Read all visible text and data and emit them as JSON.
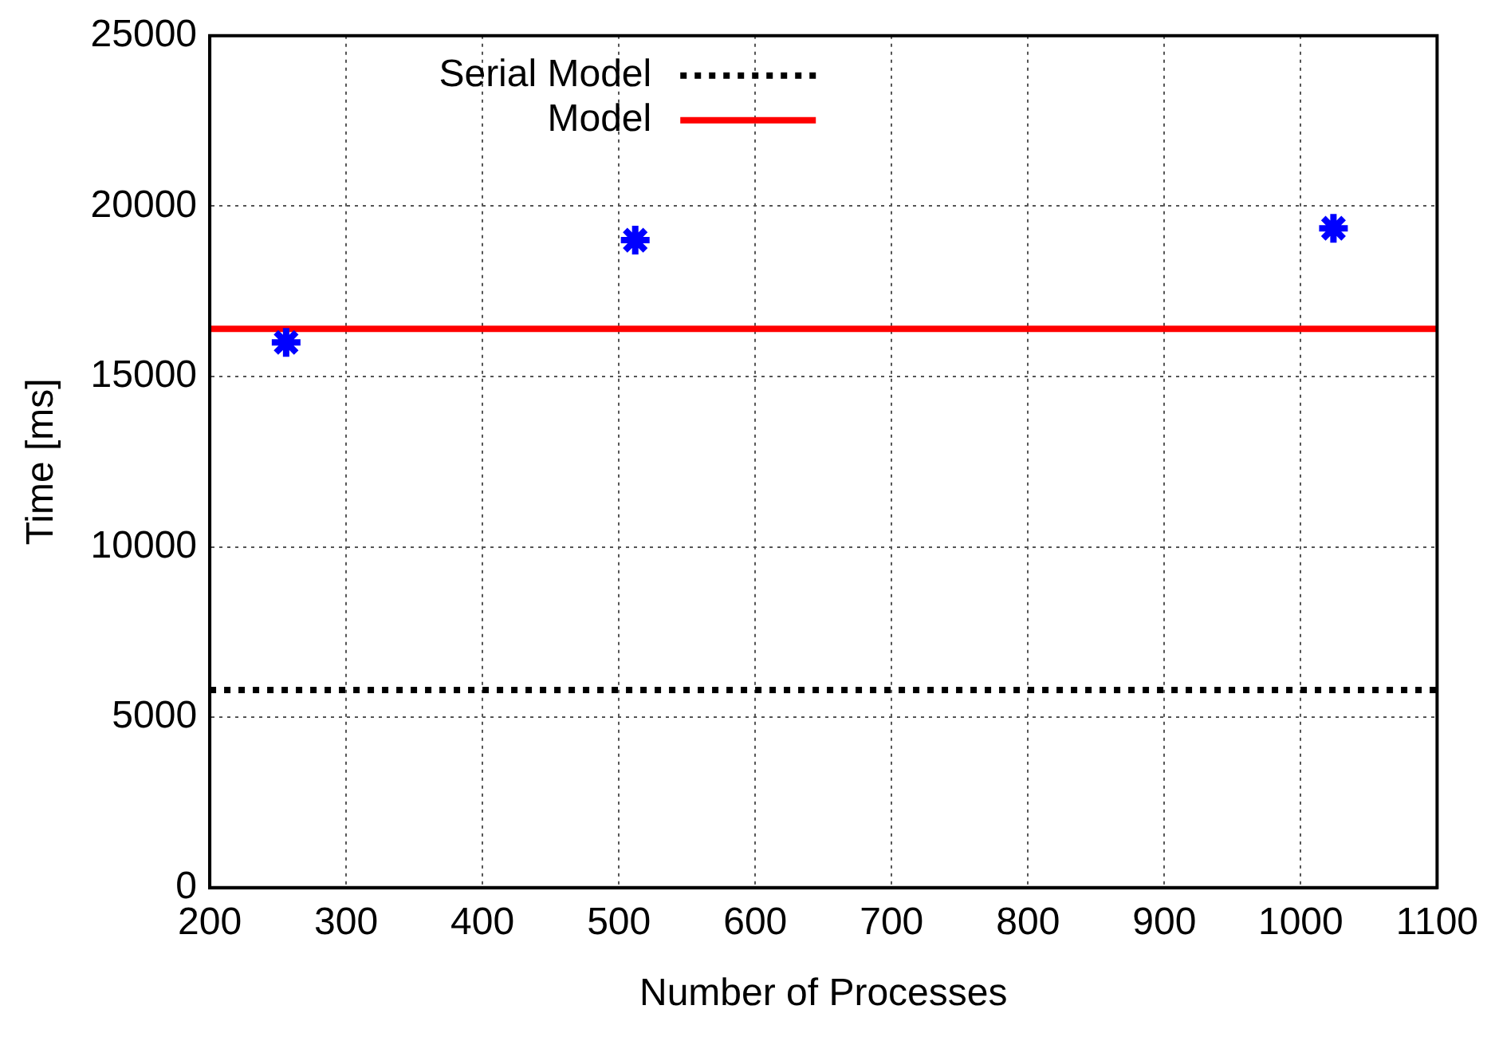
{
  "chart_data": {
    "type": "scatter",
    "xlabel": "Number of Processes",
    "ylabel": "Time [ms]",
    "xlim": [
      200,
      1100
    ],
    "xticks": [
      200,
      300,
      400,
      500,
      600,
      700,
      800,
      900,
      1000,
      1100
    ],
    "ylim": [
      0,
      25000
    ],
    "yticks": [
      0,
      5000,
      10000,
      15000,
      20000,
      25000
    ],
    "grid": true,
    "legend": "top",
    "marker": "cross",
    "series": [
      {
        "name": "Serial Model",
        "type": "line",
        "color": "#000000",
        "line_style": "dotted",
        "marker": "none",
        "x": [
          200,
          1100
        ],
        "values": [
          5800,
          5800
        ]
      },
      {
        "name": "Model",
        "type": "line",
        "color": "#ff0000",
        "line_style": "solid",
        "marker": "none",
        "x": [
          200,
          1100
        ],
        "values": [
          16400,
          16400
        ]
      },
      {
        "color": "#0000ff",
        "x": [
          256,
          512,
          1024
        ],
        "values": [
          16000,
          19000,
          19350
        ]
      }
    ]
  }
}
